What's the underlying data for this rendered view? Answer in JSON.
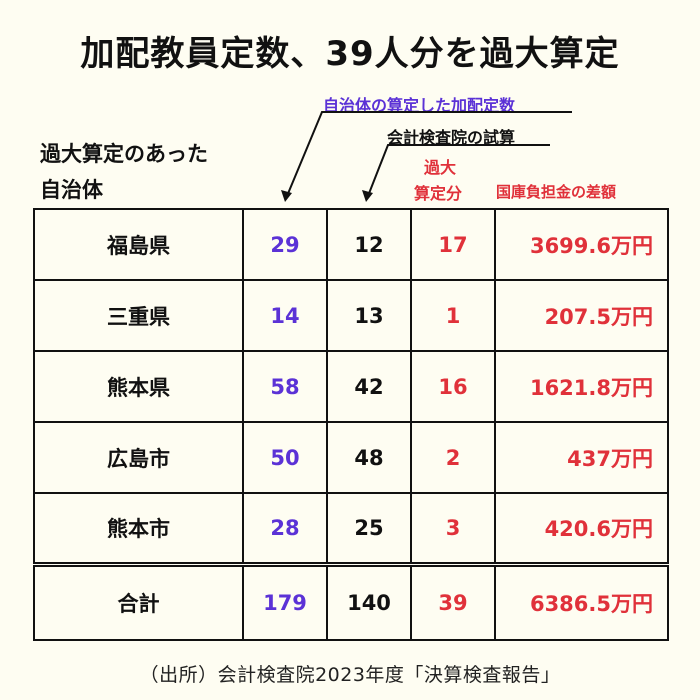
{
  "title": "加配教員定数、39人分を過大算定",
  "labels": {
    "left_line1": "過大算定のあった",
    "left_line2": "自治体",
    "municipality_count": "自治体の算定した加配定数",
    "audit_count": "会計検査院の試算",
    "excess_line1": "過大",
    "excess_line2": "算定分",
    "subsidy": "国庫負担金の差額"
  },
  "colors": {
    "background": "#fefdf2",
    "purple": "#5b32d6",
    "red": "#e0313a",
    "black": "#111111"
  },
  "source": "（出所）会計検査院2023年度「決算検査報告」",
  "chart_data": {
    "type": "table",
    "title": "加配教員定数、39人分を過大算定",
    "columns": [
      "過大算定のあった自治体",
      "自治体の算定した加配定数",
      "会計検査院の試算",
      "過大算定分",
      "国庫負担金の差額"
    ],
    "rows": [
      {
        "name": "福島県",
        "municipality": "29",
        "audit": "12",
        "excess": "17",
        "amount": "3699.6万円"
      },
      {
        "name": "三重県",
        "municipality": "14",
        "audit": "13",
        "excess": "1",
        "amount": "207.5万円"
      },
      {
        "name": "熊本県",
        "municipality": "58",
        "audit": "42",
        "excess": "16",
        "amount": "1621.8万円"
      },
      {
        "name": "広島市",
        "municipality": "50",
        "audit": "48",
        "excess": "2",
        "amount": "437万円"
      },
      {
        "name": "熊本市",
        "municipality": "28",
        "audit": "25",
        "excess": "3",
        "amount": "420.6万円"
      }
    ],
    "total": {
      "name": "合計",
      "municipality": "179",
      "audit": "140",
      "excess": "39",
      "amount": "6386.5万円"
    }
  }
}
